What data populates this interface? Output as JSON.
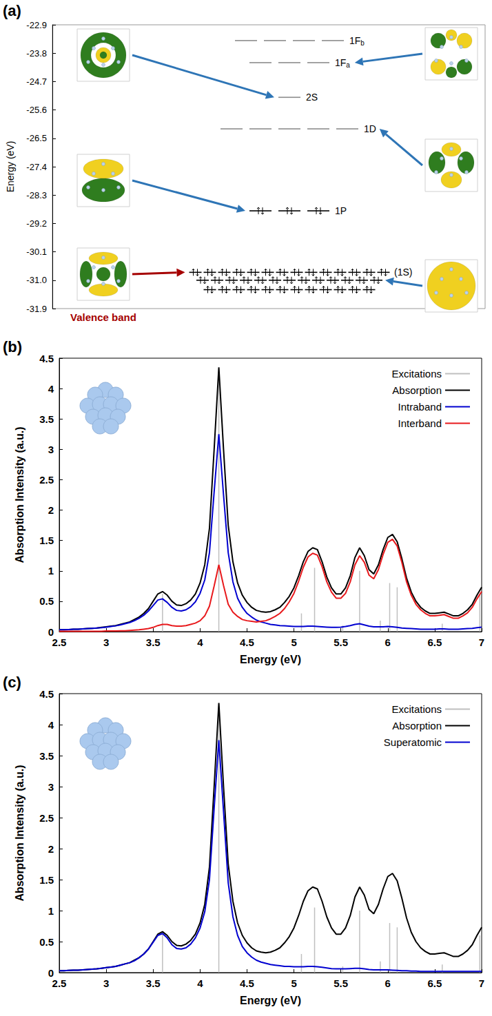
{
  "chart_data": [
    {
      "type": "energy_levels",
      "panel_label": "(a)",
      "ylabel": "Energy (eV)",
      "ylim": [
        -31.9,
        -22.9
      ],
      "yticks": [
        -31.9,
        {
          "value": -31,
          "label": "-31.0"
        },
        -30.1,
        -29.2,
        -28.3,
        -27.4,
        -26.5,
        -25.6,
        -24.7,
        -23.8,
        -22.9
      ],
      "grid": false,
      "tick_labels": "y",
      "levels": [
        {
          "label": "1F",
          "subscript": "b",
          "energy": -23.4,
          "degeneracy": 4,
          "occupied": false
        },
        {
          "label": "1F",
          "subscript": "a",
          "energy": -24.1,
          "degeneracy": 3,
          "occupied": false
        },
        {
          "label": "2S",
          "energy": -25.2,
          "degeneracy": 1,
          "occupied": false
        },
        {
          "label": "1D",
          "energy": -26.2,
          "degeneracy": 5,
          "occupied": false
        },
        {
          "label": "1P",
          "energy": -28.8,
          "degeneracy": 3,
          "occupied": true
        }
      ],
      "valence_band": {
        "label": "Valence band",
        "color": "#a50000",
        "occupied": true,
        "rows": [
          {
            "energy": -30.75,
            "degeneracy": 14
          },
          {
            "energy": -31,
            "degeneracy": 13,
            "label": "(1S)"
          },
          {
            "energy": -31.3,
            "degeneracy": 12
          }
        ]
      }
    },
    {
      "type": "line",
      "panel_label": "(b)",
      "xlabel": "Energy (eV)",
      "ylabel": "Absorption Intensity (a.u.)",
      "xlim": [
        2.5,
        7
      ],
      "xticks": [
        2.5,
        3,
        3.5,
        4,
        4.5,
        5,
        5.5,
        6,
        6.5,
        7
      ],
      "ylim": [
        0,
        4.5
      ],
      "yticks": [
        0,
        0.5,
        1,
        1.5,
        2,
        2.5,
        3,
        3.5,
        4,
        4.5
      ],
      "grid": false,
      "legend": "upper right",
      "x": [
        2.5,
        2.55,
        2.6,
        2.65,
        2.7,
        2.75,
        2.8,
        2.85,
        2.9,
        2.95,
        3,
        3.05,
        3.1,
        3.15,
        3.2,
        3.25,
        3.3,
        3.35,
        3.4,
        3.45,
        3.5,
        3.55,
        3.6,
        3.65,
        3.7,
        3.75,
        3.8,
        3.85,
        3.9,
        3.95,
        4,
        4.05,
        4.1,
        4.15,
        4.2,
        4.25,
        4.3,
        4.35,
        4.4,
        4.45,
        4.5,
        4.55,
        4.6,
        4.65,
        4.7,
        4.75,
        4.8,
        4.85,
        4.9,
        4.95,
        5,
        5.05,
        5.1,
        5.15,
        5.2,
        5.25,
        5.3,
        5.35,
        5.4,
        5.45,
        5.5,
        5.55,
        5.6,
        5.65,
        5.7,
        5.75,
        5.8,
        5.85,
        5.9,
        5.95,
        6,
        6.05,
        6.1,
        6.15,
        6.2,
        6.25,
        6.3,
        6.35,
        6.4,
        6.45,
        6.5,
        6.55,
        6.6,
        6.65,
        6.7,
        6.75,
        6.8,
        6.85,
        6.9,
        6.95,
        7
      ],
      "series": [
        {
          "name": "Excitations",
          "type": "stem",
          "color": "#bfbfbf",
          "x": [
            3.6,
            4.2,
            5.08,
            5.22,
            5.52,
            5.7,
            5.92,
            6.02,
            6.1,
            6.58,
            6.98
          ],
          "values": [
            0.62,
            4.3,
            0.3,
            1.05,
            0.1,
            1.0,
            0.18,
            0.8,
            0.73,
            0.13,
            0.6
          ]
        },
        {
          "name": "Absorption",
          "type": "line",
          "color": "#000000",
          "values": [
            0.03,
            0.03,
            0.035,
            0.04,
            0.04,
            0.045,
            0.05,
            0.055,
            0.06,
            0.07,
            0.08,
            0.09,
            0.1,
            0.12,
            0.14,
            0.16,
            0.2,
            0.24,
            0.3,
            0.38,
            0.5,
            0.62,
            0.66,
            0.6,
            0.5,
            0.44,
            0.43,
            0.46,
            0.52,
            0.62,
            0.8,
            1.1,
            1.7,
            3.0,
            4.35,
            3.0,
            1.75,
            1.15,
            0.8,
            0.6,
            0.48,
            0.4,
            0.35,
            0.33,
            0.32,
            0.33,
            0.36,
            0.4,
            0.48,
            0.58,
            0.72,
            0.92,
            1.15,
            1.32,
            1.38,
            1.35,
            1.15,
            0.9,
            0.72,
            0.62,
            0.62,
            0.72,
            0.92,
            1.22,
            1.38,
            1.25,
            1.02,
            0.95,
            1.1,
            1.35,
            1.55,
            1.6,
            1.48,
            1.2,
            0.88,
            0.65,
            0.5,
            0.4,
            0.34,
            0.3,
            0.3,
            0.31,
            0.32,
            0.29,
            0.26,
            0.26,
            0.3,
            0.36,
            0.45,
            0.6,
            0.73
          ]
        },
        {
          "name": "Intraband",
          "type": "line",
          "color": "#0000d0",
          "values": [
            0.03,
            0.03,
            0.035,
            0.04,
            0.04,
            0.045,
            0.05,
            0.055,
            0.06,
            0.065,
            0.075,
            0.085,
            0.095,
            0.11,
            0.13,
            0.15,
            0.18,
            0.22,
            0.27,
            0.34,
            0.43,
            0.52,
            0.54,
            0.48,
            0.4,
            0.35,
            0.34,
            0.36,
            0.41,
            0.49,
            0.63,
            0.85,
            1.3,
            2.3,
            3.25,
            2.25,
            1.3,
            0.82,
            0.55,
            0.4,
            0.3,
            0.24,
            0.19,
            0.16,
            0.14,
            0.12,
            0.11,
            0.1,
            0.095,
            0.09,
            0.085,
            0.085,
            0.085,
            0.09,
            0.09,
            0.085,
            0.08,
            0.075,
            0.07,
            0.07,
            0.075,
            0.085,
            0.1,
            0.12,
            0.13,
            0.11,
            0.09,
            0.08,
            0.08,
            0.08,
            0.085,
            0.08,
            0.07,
            0.06,
            0.055,
            0.05,
            0.045,
            0.04,
            0.04,
            0.04,
            0.04,
            0.045,
            0.045,
            0.04,
            0.04,
            0.04,
            0.045,
            0.05,
            0.055,
            0.065,
            0.075
          ]
        },
        {
          "name": "Interband",
          "type": "line",
          "color": "#e8191c",
          "values": [
            0.005,
            0.005,
            0.005,
            0.005,
            0.005,
            0.005,
            0.005,
            0.005,
            0.005,
            0.005,
            0.01,
            0.01,
            0.01,
            0.015,
            0.015,
            0.02,
            0.025,
            0.03,
            0.04,
            0.05,
            0.07,
            0.1,
            0.12,
            0.12,
            0.1,
            0.09,
            0.09,
            0.1,
            0.12,
            0.14,
            0.18,
            0.26,
            0.42,
            0.75,
            1.1,
            0.76,
            0.45,
            0.32,
            0.25,
            0.2,
            0.18,
            0.17,
            0.16,
            0.17,
            0.18,
            0.21,
            0.25,
            0.3,
            0.38,
            0.49,
            0.63,
            0.83,
            1.06,
            1.23,
            1.29,
            1.26,
            1.07,
            0.82,
            0.65,
            0.55,
            0.55,
            0.63,
            0.82,
            1.1,
            1.25,
            1.14,
            0.93,
            0.87,
            1.02,
            1.27,
            1.47,
            1.52,
            1.41,
            1.14,
            0.82,
            0.6,
            0.45,
            0.36,
            0.3,
            0.26,
            0.26,
            0.27,
            0.28,
            0.25,
            0.22,
            0.22,
            0.26,
            0.31,
            0.4,
            0.54,
            0.66
          ]
        }
      ]
    },
    {
      "type": "line",
      "panel_label": "(c)",
      "xlabel": "Energy (eV)",
      "ylabel": "Absorption Intensity (a.u.)",
      "xlim": [
        2.5,
        7
      ],
      "xticks": [
        2.5,
        3,
        3.5,
        4,
        4.5,
        5,
        5.5,
        6,
        6.5,
        7
      ],
      "ylim": [
        0,
        4.5
      ],
      "yticks": [
        0,
        0.5,
        1,
        1.5,
        2,
        2.5,
        3,
        3.5,
        4,
        4.5
      ],
      "grid": false,
      "legend": "upper right",
      "x": [
        2.5,
        2.55,
        2.6,
        2.65,
        2.7,
        2.75,
        2.8,
        2.85,
        2.9,
        2.95,
        3,
        3.05,
        3.1,
        3.15,
        3.2,
        3.25,
        3.3,
        3.35,
        3.4,
        3.45,
        3.5,
        3.55,
        3.6,
        3.65,
        3.7,
        3.75,
        3.8,
        3.85,
        3.9,
        3.95,
        4,
        4.05,
        4.1,
        4.15,
        4.2,
        4.25,
        4.3,
        4.35,
        4.4,
        4.45,
        4.5,
        4.55,
        4.6,
        4.65,
        4.7,
        4.75,
        4.8,
        4.85,
        4.9,
        4.95,
        5,
        5.05,
        5.1,
        5.15,
        5.2,
        5.25,
        5.3,
        5.35,
        5.4,
        5.45,
        5.5,
        5.55,
        5.6,
        5.65,
        5.7,
        5.75,
        5.8,
        5.85,
        5.9,
        5.95,
        6,
        6.05,
        6.1,
        6.15,
        6.2,
        6.25,
        6.3,
        6.35,
        6.4,
        6.45,
        6.5,
        6.55,
        6.6,
        6.65,
        6.7,
        6.75,
        6.8,
        6.85,
        6.9,
        6.95,
        7
      ],
      "series": [
        {
          "name": "Excitations",
          "type": "stem",
          "color": "#bfbfbf",
          "x": [
            3.6,
            4.2,
            5.08,
            5.22,
            5.52,
            5.7,
            5.92,
            6.02,
            6.1,
            6.58,
            6.98
          ],
          "values": [
            0.62,
            4.3,
            0.3,
            1.05,
            0.1,
            1.0,
            0.18,
            0.8,
            0.73,
            0.13,
            0.6
          ]
        },
        {
          "name": "Absorption",
          "type": "line",
          "color": "#000000",
          "values": [
            0.03,
            0.03,
            0.035,
            0.04,
            0.04,
            0.045,
            0.05,
            0.055,
            0.06,
            0.07,
            0.08,
            0.09,
            0.1,
            0.12,
            0.14,
            0.16,
            0.2,
            0.24,
            0.3,
            0.38,
            0.5,
            0.62,
            0.66,
            0.6,
            0.5,
            0.44,
            0.43,
            0.46,
            0.52,
            0.62,
            0.8,
            1.1,
            1.7,
            3.0,
            4.35,
            3.0,
            1.75,
            1.15,
            0.8,
            0.6,
            0.48,
            0.4,
            0.35,
            0.33,
            0.32,
            0.33,
            0.36,
            0.4,
            0.48,
            0.58,
            0.72,
            0.92,
            1.15,
            1.32,
            1.38,
            1.35,
            1.15,
            0.9,
            0.72,
            0.62,
            0.62,
            0.72,
            0.92,
            1.22,
            1.38,
            1.25,
            1.02,
            0.95,
            1.1,
            1.35,
            1.55,
            1.6,
            1.48,
            1.2,
            0.88,
            0.65,
            0.5,
            0.4,
            0.34,
            0.3,
            0.3,
            0.31,
            0.32,
            0.29,
            0.26,
            0.26,
            0.3,
            0.36,
            0.45,
            0.6,
            0.73
          ]
        },
        {
          "name": "Superatomic",
          "type": "line",
          "color": "#0000d0",
          "values": [
            0.03,
            0.03,
            0.035,
            0.04,
            0.04,
            0.045,
            0.05,
            0.055,
            0.06,
            0.07,
            0.08,
            0.09,
            0.1,
            0.12,
            0.14,
            0.16,
            0.19,
            0.24,
            0.3,
            0.38,
            0.49,
            0.6,
            0.63,
            0.56,
            0.45,
            0.39,
            0.38,
            0.4,
            0.46,
            0.56,
            0.72,
            0.98,
            1.5,
            2.65,
            3.75,
            2.6,
            1.45,
            0.9,
            0.6,
            0.42,
            0.32,
            0.25,
            0.2,
            0.17,
            0.15,
            0.13,
            0.12,
            0.11,
            0.1,
            0.1,
            0.095,
            0.095,
            0.095,
            0.1,
            0.1,
            0.095,
            0.085,
            0.075,
            0.065,
            0.06,
            0.06,
            0.06,
            0.065,
            0.07,
            0.07,
            0.06,
            0.05,
            0.045,
            0.045,
            0.045,
            0.045,
            0.04,
            0.035,
            0.03,
            0.03,
            0.025,
            0.025,
            0.02,
            0.02,
            0.02,
            0.02,
            0.02,
            0.02,
            0.02,
            0.02,
            0.02,
            0.02,
            0.02,
            0.02,
            0.02,
            0.02
          ]
        }
      ]
    }
  ]
}
